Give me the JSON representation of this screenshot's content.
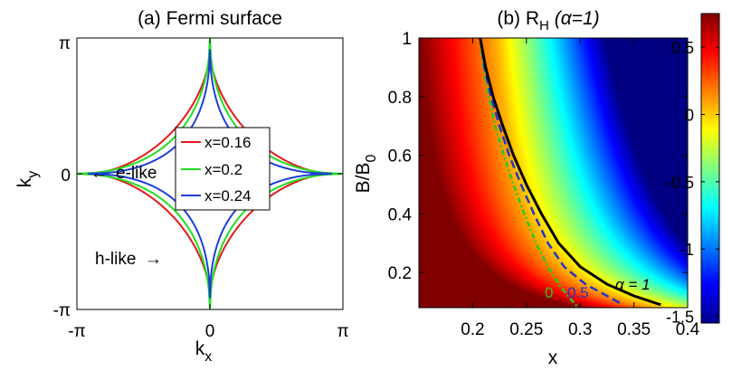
{
  "chart_data": [
    {
      "type": "line",
      "title": "(a) Fermi surface",
      "xlabel_main": "k",
      "xlabel_sub": "x",
      "ylabel_main": "k",
      "ylabel_sub": "y",
      "xticks": [
        "-π",
        "0",
        "π"
      ],
      "yticks": [
        "-π",
        "0",
        "π"
      ],
      "xlim": [
        -3.14159,
        3.14159
      ],
      "ylim": [
        -3.14159,
        3.14159
      ],
      "series": [
        {
          "name": "x=0.16",
          "color": "#e41a1c",
          "edge_gap": 0.32,
          "tightness": 1.6
        },
        {
          "name": "x=0.2",
          "color": "#22dd22",
          "edge_gap": 0.0,
          "tightness": 1.9
        },
        {
          "name": "x=0.24",
          "color": "#1f3fd6",
          "edge_gap": 0.26,
          "tightness": 2.0
        }
      ],
      "annotations": [
        "e-like",
        "h-like",
        "←",
        "→"
      ]
    },
    {
      "type": "heatmap",
      "title_main": "(b) R",
      "title_sub": "H",
      "title_tail": " (α=1)",
      "xlabel": "x",
      "ylabel_main": "B/B",
      "ylabel_sub": "0",
      "xlim": [
        0.15,
        0.4
      ],
      "ylim": [
        0.08,
        1.0
      ],
      "xticks": [
        "0.2",
        "0.25",
        "0.3",
        "0.35",
        "0.4"
      ],
      "xtick_values": [
        0.2,
        0.25,
        0.3,
        0.35,
        0.4
      ],
      "yticks": [
        "0.2",
        "0.4",
        "0.6",
        "0.8",
        "1"
      ],
      "ytick_values": [
        0.2,
        0.4,
        0.6,
        0.8,
        1.0
      ],
      "colorbar": {
        "range": [
          -1.55,
          0.75
        ],
        "ticks": [
          "0.5",
          "0",
          "-0.5",
          "-1",
          "-1.5"
        ],
        "tick_values": [
          0.5,
          0,
          -0.5,
          -1,
          -1.5
        ]
      },
      "contours": [
        {
          "label": "α = 1",
          "color": "#000000",
          "dash": "none",
          "points": [
            [
              0.207,
              1.0
            ],
            [
              0.212,
              0.9
            ],
            [
              0.219,
              0.8
            ],
            [
              0.228,
              0.7
            ],
            [
              0.238,
              0.6
            ],
            [
              0.25,
              0.5
            ],
            [
              0.264,
              0.4
            ],
            [
              0.28,
              0.3
            ],
            [
              0.3,
              0.22
            ],
            [
              0.325,
              0.16
            ],
            [
              0.35,
              0.12
            ],
            [
              0.375,
              0.09
            ]
          ]
        },
        {
          "label": "0.5",
          "color": "#2233cc",
          "dash": "9,5",
          "points": [
            [
              0.207,
              1.0
            ],
            [
              0.211,
              0.9
            ],
            [
              0.217,
              0.8
            ],
            [
              0.225,
              0.7
            ],
            [
              0.234,
              0.6
            ],
            [
              0.245,
              0.5
            ],
            [
              0.257,
              0.4
            ],
            [
              0.27,
              0.3
            ],
            [
              0.285,
              0.22
            ],
            [
              0.305,
              0.16
            ],
            [
              0.325,
              0.12
            ],
            [
              0.34,
              0.09
            ]
          ]
        },
        {
          "label": "0",
          "color": "#22cc22",
          "dash": "6,3,2,3",
          "points": [
            [
              0.207,
              1.0
            ],
            [
              0.21,
              0.9
            ],
            [
              0.215,
              0.8
            ],
            [
              0.221,
              0.7
            ],
            [
              0.229,
              0.6
            ],
            [
              0.238,
              0.5
            ],
            [
              0.248,
              0.4
            ],
            [
              0.259,
              0.3
            ],
            [
              0.27,
              0.22
            ],
            [
              0.282,
              0.15
            ],
            [
              0.291,
              0.11
            ],
            [
              0.298,
              0.08
            ]
          ]
        }
      ]
    }
  ]
}
